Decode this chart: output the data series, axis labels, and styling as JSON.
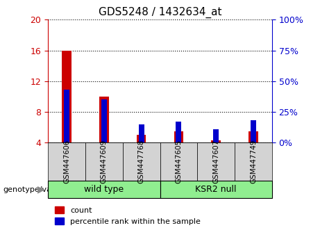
{
  "title": "GDS5248 / 1432634_at",
  "categories": [
    "GSM447606",
    "GSM447609",
    "GSM447768",
    "GSM447605",
    "GSM447607",
    "GSM447749"
  ],
  "count_values": [
    16.0,
    10.0,
    5.0,
    5.5,
    4.3,
    5.5
  ],
  "percentile_values": [
    43,
    35,
    15,
    17,
    11,
    18
  ],
  "ylim_left": [
    4,
    20
  ],
  "ylim_right": [
    0,
    100
  ],
  "yticks_left": [
    4,
    8,
    12,
    16,
    20
  ],
  "yticks_right": [
    0,
    25,
    50,
    75,
    100
  ],
  "left_color": "#cc0000",
  "right_color": "#0000cc",
  "bar_width": 0.25,
  "group_labels": [
    "wild type",
    "KSR2 null"
  ],
  "legend_items": [
    "count",
    "percentile rank within the sample"
  ],
  "bg_color": "#d3d3d3",
  "green_color": "#90ee90",
  "bar_bottom": 4
}
